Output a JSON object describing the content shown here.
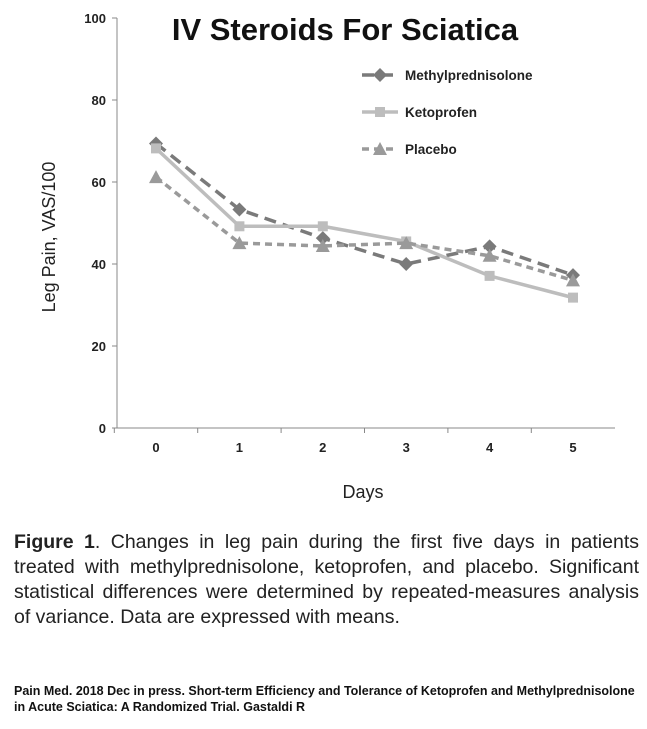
{
  "chart_data": {
    "type": "line",
    "title": "IV Steroids For Sciatica",
    "xlabel": "Days",
    "ylabel": "Leg Pain, VAS/100",
    "x": [
      0,
      1,
      2,
      3,
      4,
      5
    ],
    "xticks": [
      "0",
      "1",
      "2",
      "3",
      "4",
      "5"
    ],
    "ylim": [
      0,
      100
    ],
    "yticks": [
      "0",
      "20",
      "40",
      "60",
      "80",
      "100"
    ],
    "grid": false,
    "legend": "top-right",
    "series": [
      {
        "name": "Methylprednisolone",
        "values": [
          69.4,
          53.3,
          46.3,
          40.0,
          44.3,
          37.3
        ],
        "color": "#7a7a7a",
        "marker": "diamond",
        "dash": "long-dash"
      },
      {
        "name": "Ketoprofen",
        "values": [
          68.2,
          49.2,
          49.2,
          45.5,
          37.1,
          31.8
        ],
        "color": "#bdbdbd",
        "marker": "square",
        "dash": "solid"
      },
      {
        "name": "Placebo",
        "values": [
          61.2,
          45.1,
          44.4,
          45.1,
          42.0,
          36.0
        ],
        "color": "#9a9a9a",
        "marker": "triangle",
        "dash": "short-dash"
      }
    ]
  },
  "caption": {
    "label": "Figure 1",
    "text": ". Changes in leg pain during the first five days in patients treated with methylprednisolone, ketoprofen, and placebo. Significant statistical differences were determined by repeated-measures analysis of variance. Data are expressed with means."
  },
  "source": "Pain Med. 2018 Dec in press. Short-term Efficiency and Tolerance of Ketoprofen and Methylprednisolone in Acute Sciatica: A Randomized Trial. Gastaldi R"
}
